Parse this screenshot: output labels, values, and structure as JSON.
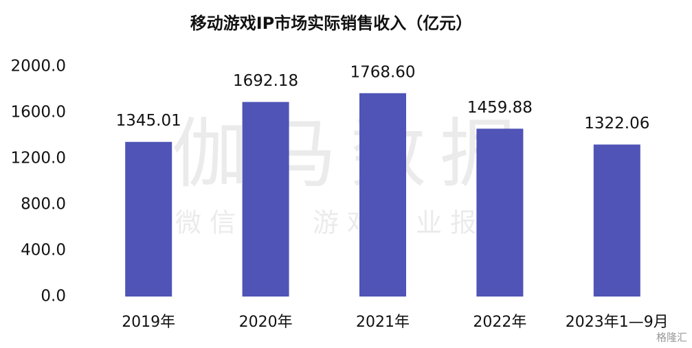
{
  "chart_data": {
    "type": "bar",
    "title": "移动游戏IP市场实际销售收入（亿元）",
    "categories": [
      "2019年",
      "2020年",
      "2021年",
      "2022年",
      "2023年1—9月"
    ],
    "values": [
      1345.01,
      1692.18,
      1768.6,
      1459.88,
      1322.06
    ],
    "value_labels": [
      "1345.01",
      "1692.18",
      "1768.60",
      "1459.88",
      "1322.06"
    ],
    "color": "#4f54b6",
    "ylim": [
      0,
      2000
    ],
    "yticks": [
      {
        "value": 0,
        "label": "0.0"
      },
      {
        "value": 400,
        "label": "400.0"
      },
      {
        "value": 800,
        "label": "800.0"
      },
      {
        "value": 1200,
        "label": "1200.0"
      },
      {
        "value": 1600,
        "label": "1600.0"
      },
      {
        "value": 2000,
        "label": "2000.0"
      }
    ],
    "grid": false,
    "watermark": "伽马数据",
    "watermark_subtitle": "微信号：游戏产业报告",
    "source_logo": "格隆汇"
  }
}
